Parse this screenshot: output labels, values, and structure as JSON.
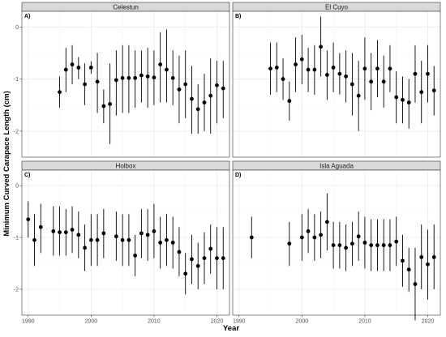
{
  "chart_data": {
    "type": "scatter",
    "ylabel": "Minimum Curved Carapace Length (cm)",
    "xlabel": "Year",
    "xlim": [
      1989,
      2022
    ],
    "ylim": [
      -2.5,
      0.3
    ],
    "x_ticks": [
      1990,
      2000,
      2010,
      2020
    ],
    "y_ticks": [
      0,
      -1,
      -2
    ],
    "y_tick_labels": [
      "0",
      "-1",
      "-2"
    ],
    "grid": true,
    "colors": {
      "point": "#000000",
      "strip_fill": "#d9d9d9",
      "grid_major": "#ebebeb",
      "grid_minor": "#f5f5f5",
      "panel_border": "#333333"
    },
    "panels": [
      {
        "letter": "A)",
        "title": "Celestun",
        "points": [
          {
            "year": 1995,
            "y": -1.25,
            "lo": -1.55,
            "hi": -0.95
          },
          {
            "year": 1996,
            "y": -0.82,
            "lo": -1.25,
            "hi": -0.4
          },
          {
            "year": 1997,
            "y": -0.72,
            "lo": -1.1,
            "hi": -0.35
          },
          {
            "year": 1998,
            "y": -0.78,
            "lo": -1.0,
            "hi": -0.58
          },
          {
            "year": 1999,
            "y": -1.1,
            "lo": -1.5,
            "hi": -0.7
          },
          {
            "year": 2000,
            "y": -0.78,
            "lo": -0.9,
            "hi": -0.66
          },
          {
            "year": 2001,
            "y": -1.05,
            "lo": -1.65,
            "hi": -0.5
          },
          {
            "year": 2002,
            "y": -1.52,
            "lo": -1.85,
            "hi": -1.2
          },
          {
            "year": 2003,
            "y": -1.48,
            "lo": -2.25,
            "hi": -0.7
          },
          {
            "year": 2004,
            "y": -1.02,
            "lo": -1.7,
            "hi": -0.45
          },
          {
            "year": 2005,
            "y": -0.98,
            "lo": -1.65,
            "hi": -0.35
          },
          {
            "year": 2006,
            "y": -0.98,
            "lo": -1.65,
            "hi": -0.35
          },
          {
            "year": 2007,
            "y": -0.98,
            "lo": -1.55,
            "hi": -0.45
          },
          {
            "year": 2008,
            "y": -0.93,
            "lo": -1.45,
            "hi": -0.45
          },
          {
            "year": 2009,
            "y": -0.95,
            "lo": -1.55,
            "hi": -0.4
          },
          {
            "year": 2010,
            "y": -0.97,
            "lo": -1.5,
            "hi": -0.45
          },
          {
            "year": 2011,
            "y": -0.72,
            "lo": -1.45,
            "hi": -0.1
          },
          {
            "year": 2012,
            "y": -0.82,
            "lo": -1.45,
            "hi": -0.05
          },
          {
            "year": 2013,
            "y": -0.98,
            "lo": -1.5,
            "hi": -0.45
          },
          {
            "year": 2014,
            "y": -1.2,
            "lo": -1.85,
            "hi": -0.55
          },
          {
            "year": 2015,
            "y": -1.1,
            "lo": -1.75,
            "hi": -0.45
          },
          {
            "year": 2016,
            "y": -1.38,
            "lo": -2.05,
            "hi": -0.75
          },
          {
            "year": 2017,
            "y": -1.58,
            "lo": -2.05,
            "hi": -1.1
          },
          {
            "year": 2018,
            "y": -1.45,
            "lo": -2.0,
            "hi": -0.9
          },
          {
            "year": 2019,
            "y": -1.32,
            "lo": -2.05,
            "hi": -0.6
          },
          {
            "year": 2020,
            "y": -1.12,
            "lo": -1.85,
            "hi": -0.65
          },
          {
            "year": 2021,
            "y": -1.18,
            "lo": -1.75,
            "hi": -0.65
          }
        ]
      },
      {
        "letter": "B)",
        "title": "El Cuyo",
        "points": [
          {
            "year": 1995,
            "y": -0.8,
            "lo": -1.3,
            "hi": -0.3
          },
          {
            "year": 1996,
            "y": -0.78,
            "lo": -1.25,
            "hi": -0.3
          },
          {
            "year": 1997,
            "y": -1.0,
            "lo": -1.4,
            "hi": -0.6
          },
          {
            "year": 1998,
            "y": -1.42,
            "lo": -1.8,
            "hi": -1.05
          },
          {
            "year": 1999,
            "y": -0.72,
            "lo": -1.25,
            "hi": -0.2
          },
          {
            "year": 2000,
            "y": -0.62,
            "lo": -1.1,
            "hi": -0.15
          },
          {
            "year": 2001,
            "y": -0.82,
            "lo": -1.25,
            "hi": -0.4
          },
          {
            "year": 2002,
            "y": -0.82,
            "lo": -1.3,
            "hi": -0.35
          },
          {
            "year": 2003,
            "y": -0.38,
            "lo": -0.95,
            "hi": 0.2
          },
          {
            "year": 2004,
            "y": -0.92,
            "lo": -1.4,
            "hi": -0.45
          },
          {
            "year": 2005,
            "y": -0.78,
            "lo": -1.25,
            "hi": -0.3
          },
          {
            "year": 2006,
            "y": -0.9,
            "lo": -1.3,
            "hi": -0.5
          },
          {
            "year": 2007,
            "y": -0.95,
            "lo": -1.45,
            "hi": -0.45
          },
          {
            "year": 2008,
            "y": -1.1,
            "lo": -1.7,
            "hi": -0.5
          },
          {
            "year": 2009,
            "y": -1.32,
            "lo": -2.0,
            "hi": -0.65
          },
          {
            "year": 2010,
            "y": -0.8,
            "lo": -1.4,
            "hi": -0.2
          },
          {
            "year": 2011,
            "y": -1.05,
            "lo": -1.6,
            "hi": -0.5
          },
          {
            "year": 2012,
            "y": -0.8,
            "lo": -1.35,
            "hi": -0.25
          },
          {
            "year": 2013,
            "y": -1.05,
            "lo": -1.55,
            "hi": -0.55
          },
          {
            "year": 2014,
            "y": -0.8,
            "lo": -1.25,
            "hi": -0.35
          },
          {
            "year": 2015,
            "y": -1.35,
            "lo": -1.85,
            "hi": -0.85
          },
          {
            "year": 2016,
            "y": -1.4,
            "lo": -1.85,
            "hi": -0.95
          },
          {
            "year": 2017,
            "y": -1.45,
            "lo": -1.95,
            "hi": -1.0
          },
          {
            "year": 2018,
            "y": -0.9,
            "lo": -1.45,
            "hi": -0.35
          },
          {
            "year": 2019,
            "y": -1.25,
            "lo": -1.85,
            "hi": -0.65
          },
          {
            "year": 2020,
            "y": -0.9,
            "lo": -1.45,
            "hi": -0.35
          },
          {
            "year": 2021,
            "y": -1.22,
            "lo": -1.7,
            "hi": -0.75
          }
        ]
      },
      {
        "letter": "C)",
        "title": "Holbox",
        "points": [
          {
            "year": 1990,
            "y": -0.65,
            "lo": -1.0,
            "hi": -0.3
          },
          {
            "year": 1991,
            "y": -1.05,
            "lo": -1.55,
            "hi": -0.55
          },
          {
            "year": 1992,
            "y": -0.8,
            "lo": -1.3,
            "hi": -0.35
          },
          {
            "year": 1994,
            "y": -0.88,
            "lo": -1.35,
            "hi": -0.4
          },
          {
            "year": 1995,
            "y": -0.9,
            "lo": -1.35,
            "hi": -0.4
          },
          {
            "year": 1996,
            "y": -0.9,
            "lo": -1.35,
            "hi": -0.45
          },
          {
            "year": 1997,
            "y": -0.85,
            "lo": -1.3,
            "hi": -0.4
          },
          {
            "year": 1998,
            "y": -0.95,
            "lo": -1.4,
            "hi": -0.5
          },
          {
            "year": 1999,
            "y": -1.2,
            "lo": -1.65,
            "hi": -0.75
          },
          {
            "year": 2000,
            "y": -1.05,
            "lo": -1.55,
            "hi": -0.55
          },
          {
            "year": 2001,
            "y": -1.05,
            "lo": -1.55,
            "hi": -0.55
          },
          {
            "year": 2002,
            "y": -0.92,
            "lo": -1.4,
            "hi": -0.45
          },
          {
            "year": 2004,
            "y": -0.98,
            "lo": -1.45,
            "hi": -0.5
          },
          {
            "year": 2005,
            "y": -1.05,
            "lo": -1.55,
            "hi": -0.55
          },
          {
            "year": 2006,
            "y": -1.05,
            "lo": -1.55,
            "hi": -0.55
          },
          {
            "year": 2007,
            "y": -1.35,
            "lo": -1.75,
            "hi": -0.95
          },
          {
            "year": 2008,
            "y": -0.92,
            "lo": -1.4,
            "hi": -0.45
          },
          {
            "year": 2009,
            "y": -0.95,
            "lo": -1.45,
            "hi": -0.45
          },
          {
            "year": 2010,
            "y": -0.88,
            "lo": -1.4,
            "hi": -0.35
          },
          {
            "year": 2011,
            "y": -1.1,
            "lo": -1.6,
            "hi": -0.6
          },
          {
            "year": 2012,
            "y": -1.05,
            "lo": -1.55,
            "hi": -0.55
          },
          {
            "year": 2013,
            "y": -1.1,
            "lo": -1.6,
            "hi": -0.6
          },
          {
            "year": 2014,
            "y": -1.28,
            "lo": -1.75,
            "hi": -0.8
          },
          {
            "year": 2015,
            "y": -1.7,
            "lo": -2.1,
            "hi": -1.3
          },
          {
            "year": 2016,
            "y": -1.42,
            "lo": -1.9,
            "hi": -0.95
          },
          {
            "year": 2017,
            "y": -1.55,
            "lo": -2.0,
            "hi": -1.1
          },
          {
            "year": 2018,
            "y": -1.4,
            "lo": -1.9,
            "hi": -0.9
          },
          {
            "year": 2019,
            "y": -1.22,
            "lo": -1.7,
            "hi": -0.75
          },
          {
            "year": 2020,
            "y": -1.4,
            "lo": -2.0,
            "hi": -0.8
          },
          {
            "year": 2021,
            "y": -1.4,
            "lo": -2.0,
            "hi": -0.8
          }
        ]
      },
      {
        "letter": "D)",
        "title": "Isla Aguada",
        "points": [
          {
            "year": 1992,
            "y": -1.0,
            "lo": -1.4,
            "hi": -0.6
          },
          {
            "year": 1998,
            "y": -1.12,
            "lo": -1.55,
            "hi": -0.7
          },
          {
            "year": 2000,
            "y": -1.0,
            "lo": -1.45,
            "hi": -0.55
          },
          {
            "year": 2001,
            "y": -0.88,
            "lo": -1.3,
            "hi": -0.45
          },
          {
            "year": 2002,
            "y": -1.0,
            "lo": -1.45,
            "hi": -0.55
          },
          {
            "year": 2003,
            "y": -0.95,
            "lo": -1.4,
            "hi": -0.5
          },
          {
            "year": 2004,
            "y": -0.7,
            "lo": -1.25,
            "hi": -0.15
          },
          {
            "year": 2005,
            "y": -1.15,
            "lo": -1.6,
            "hi": -0.7
          },
          {
            "year": 2006,
            "y": -1.15,
            "lo": -1.6,
            "hi": -0.7
          },
          {
            "year": 2007,
            "y": -1.2,
            "lo": -1.65,
            "hi": -0.75
          },
          {
            "year": 2008,
            "y": -1.12,
            "lo": -1.55,
            "hi": -0.7
          },
          {
            "year": 2009,
            "y": -0.98,
            "lo": -1.45,
            "hi": -0.5
          },
          {
            "year": 2010,
            "y": -1.1,
            "lo": -1.6,
            "hi": -0.6
          },
          {
            "year": 2011,
            "y": -1.15,
            "lo": -1.65,
            "hi": -0.65
          },
          {
            "year": 2012,
            "y": -1.15,
            "lo": -1.65,
            "hi": -0.65
          },
          {
            "year": 2013,
            "y": -1.15,
            "lo": -1.65,
            "hi": -0.65
          },
          {
            "year": 2014,
            "y": -1.15,
            "lo": -1.65,
            "hi": -0.65
          },
          {
            "year": 2015,
            "y": -1.08,
            "lo": -1.55,
            "hi": -0.6
          },
          {
            "year": 2016,
            "y": -1.45,
            "lo": -1.95,
            "hi": -0.95
          },
          {
            "year": 2017,
            "y": -1.62,
            "lo": -2.05,
            "hi": -1.2
          },
          {
            "year": 2018,
            "y": -1.9,
            "lo": -2.6,
            "hi": -1.2
          },
          {
            "year": 2019,
            "y": -1.38,
            "lo": -2.0,
            "hi": -0.75
          },
          {
            "year": 2020,
            "y": -1.52,
            "lo": -2.2,
            "hi": -0.85
          },
          {
            "year": 2021,
            "y": -1.38,
            "lo": -2.0,
            "hi": -0.75
          }
        ]
      }
    ]
  }
}
